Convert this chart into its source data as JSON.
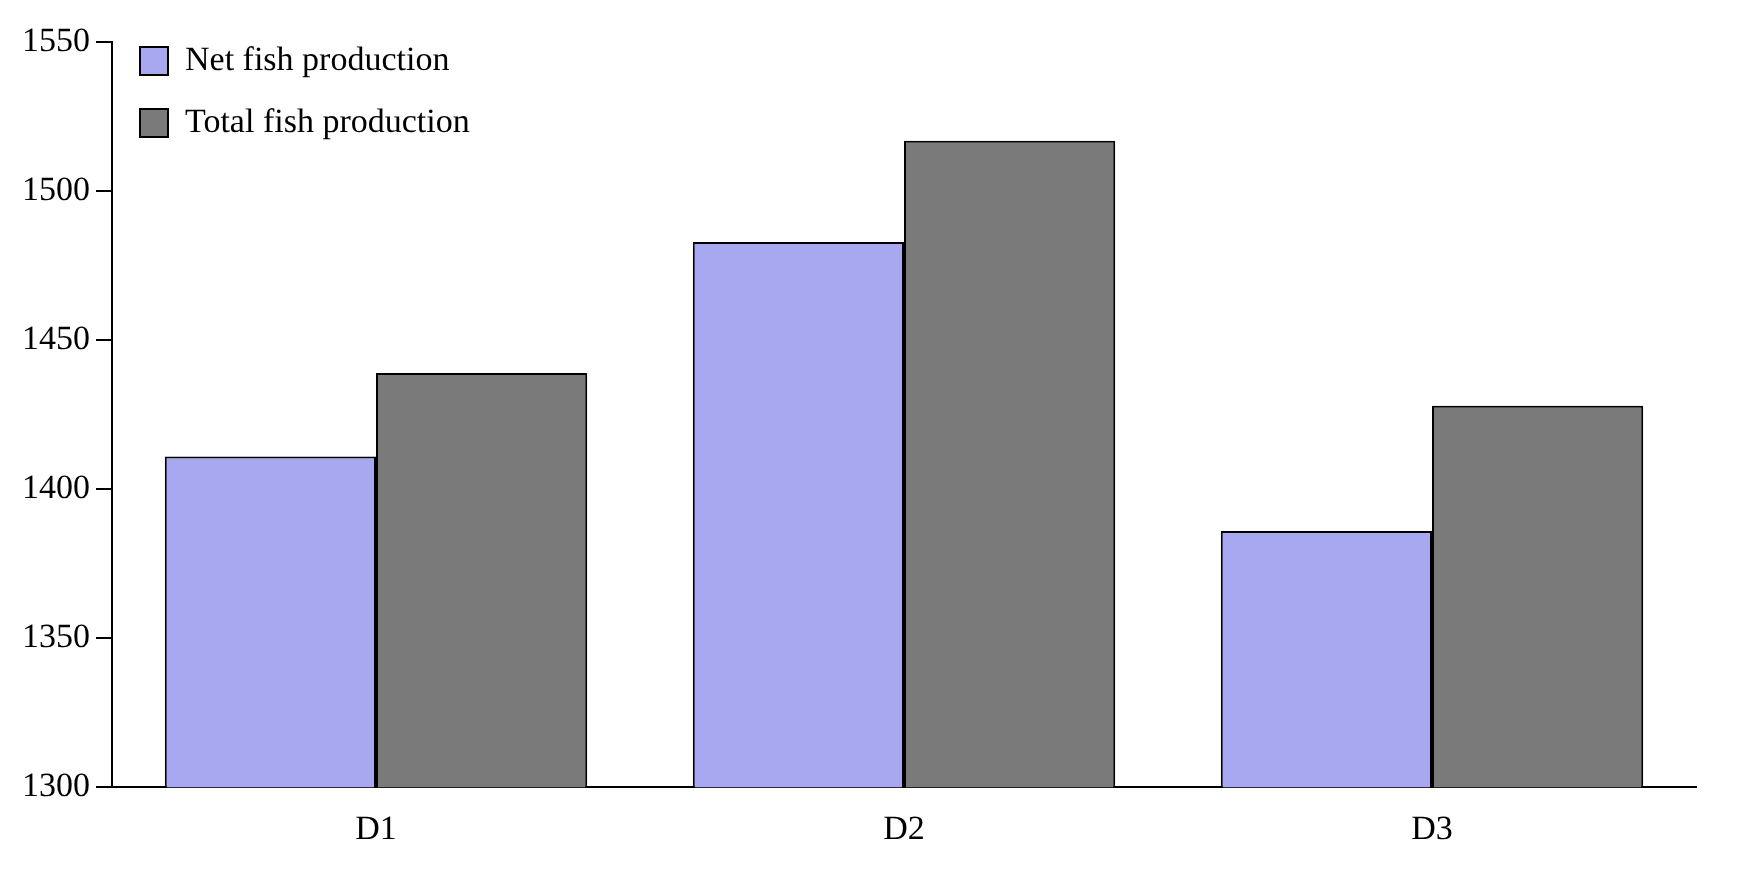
{
  "chart_data": {
    "type": "bar",
    "categories": [
      "D1",
      "D2",
      "D3"
    ],
    "series": [
      {
        "name": "Net fish production",
        "color": "#a8a8f0",
        "values": [
          1411,
          1483,
          1386
        ]
      },
      {
        "name": "Total fish production",
        "color": "#7a7a7a",
        "values": [
          1439,
          1517,
          1428
        ]
      }
    ],
    "ylim": [
      1300,
      1550
    ],
    "yticks": [
      1300,
      1350,
      1400,
      1450,
      1500,
      1550
    ],
    "legend": "top left"
  }
}
